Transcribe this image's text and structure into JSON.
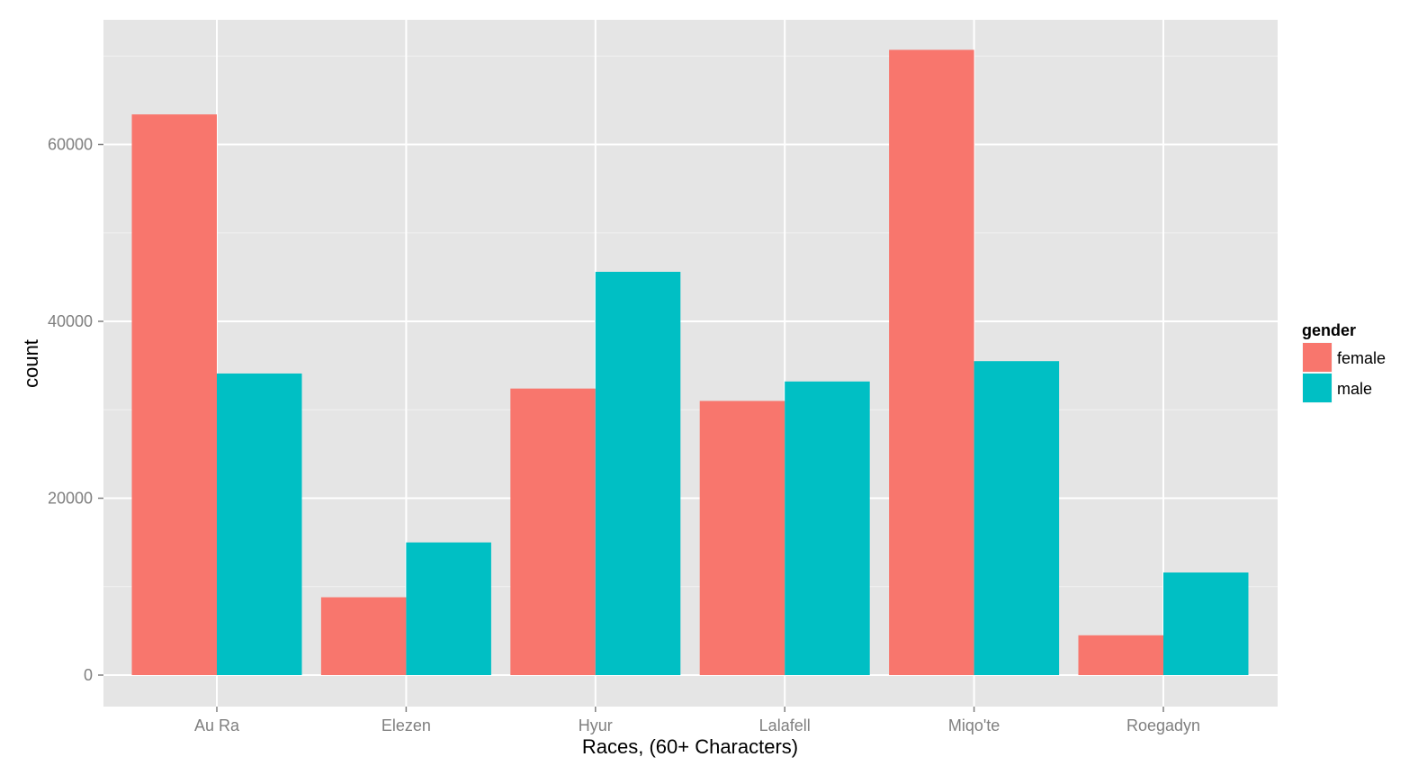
{
  "chart_data": {
    "type": "bar",
    "title": "",
    "xlabel": "Races, (60+ Characters)",
    "ylabel": "count",
    "categories": [
      "Au Ra",
      "Elezen",
      "Hyur",
      "Lalafell",
      "Miqo'te",
      "Roegadyn"
    ],
    "series": [
      {
        "name": "female",
        "color": "#F8766D",
        "values": [
          63400,
          8800,
          32400,
          31000,
          70700,
          4500
        ]
      },
      {
        "name": "male",
        "color": "#00BFC4",
        "values": [
          34100,
          15000,
          45600,
          33200,
          35500,
          11600
        ]
      }
    ],
    "ylim": [
      -3500,
      74000
    ],
    "yticks": [
      0,
      20000,
      40000,
      60000
    ],
    "ytick_labels": [
      "0",
      "20000",
      "40000",
      "60000"
    ],
    "legend": {
      "title": "gender",
      "position": "right"
    },
    "grid": true,
    "panel_background": "#E5E5E5",
    "grid_color": "#FFFFFF"
  }
}
